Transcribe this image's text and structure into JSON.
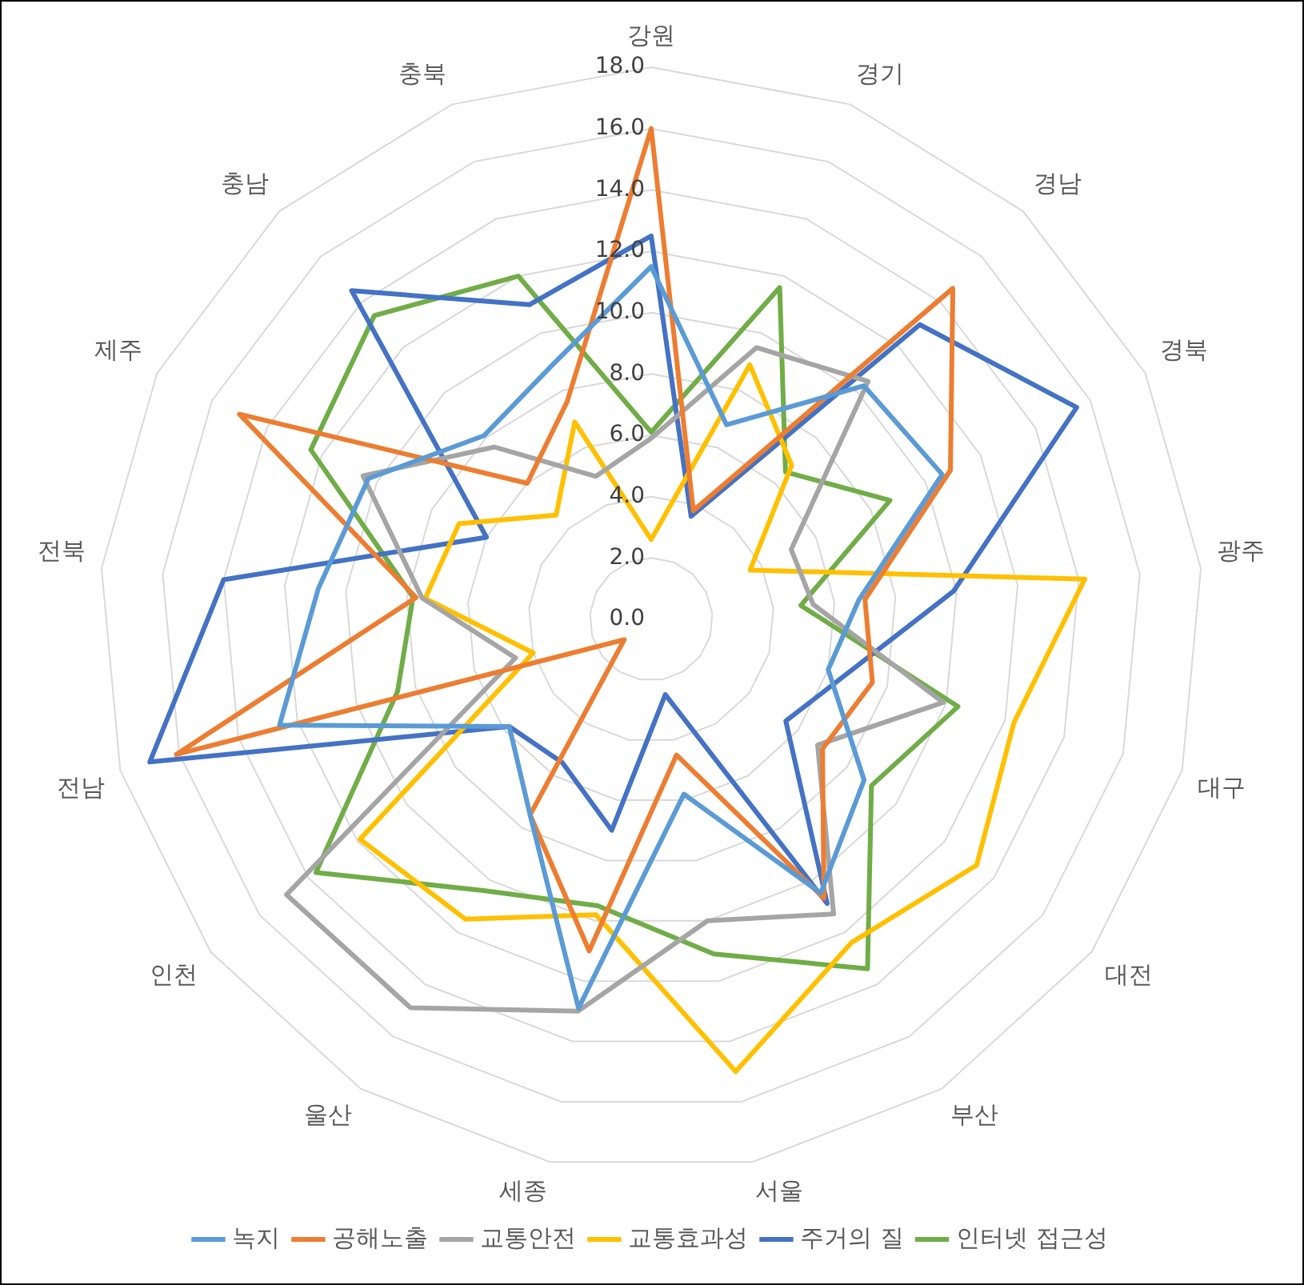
{
  "chart_data": {
    "type": "radar",
    "categories": [
      "강원",
      "경기",
      "경남",
      "경북",
      "광주",
      "대구",
      "대전",
      "부산",
      "서울",
      "세종",
      "울산",
      "인천",
      "전남",
      "전북",
      "제주",
      "충남",
      "충북"
    ],
    "series": [
      {
        "name": "녹지",
        "color": "#5b9bd5",
        "values": [
          11.5,
          6.8,
          10.3,
          10.6,
          6.8,
          6.0,
          8.7,
          10.5,
          5.8,
          12.9,
          7.5,
          5.8,
          12.6,
          10.9,
          10.3,
          8.1,
          8.9
        ]
      },
      {
        "name": "공해노출",
        "color": "#ed7d31",
        "values": [
          16.0,
          3.8,
          14.6,
          10.9,
          7.0,
          7.5,
          7.0,
          10.7,
          4.5,
          11.0,
          7.5,
          1.1,
          16.1,
          7.7,
          15.0,
          6.0,
          7.6
        ]
      },
      {
        "name": "교통안전",
        "color": "#a5a5a5",
        "values": [
          5.9,
          9.5,
          10.5,
          5.1,
          5.3,
          9.9,
          6.8,
          11.3,
          10.0,
          13.0,
          14.9,
          14.9,
          4.6,
          7.5,
          10.5,
          7.6,
          5.0
        ]
      },
      {
        "name": "교통효과성",
        "color": "#ffc000",
        "values": [
          2.6,
          8.9,
          6.8,
          3.6,
          14.2,
          12.3,
          13.3,
          12.4,
          15.0,
          9.8,
          11.5,
          11.9,
          4.0,
          7.4,
          7.0,
          4.6,
          6.9
        ]
      },
      {
        "name": "주거의 질",
        "color": "#4472c4",
        "values": [
          12.5,
          3.6,
          13.0,
          15.5,
          9.9,
          6.6,
          5.5,
          10.9,
          2.5,
          7.0,
          5.5,
          5.8,
          17.0,
          14.0,
          6.0,
          14.5,
          11.0
        ]
      },
      {
        "name": "인터넷 접근성",
        "color": "#70ad47",
        "values": [
          6.1,
          11.6,
          6.5,
          8.7,
          4.9,
          10.4,
          9.0,
          13.4,
          11.1,
          9.5,
          10.4,
          13.7,
          8.6,
          7.8,
          12.4,
          13.4,
          12.0
        ]
      }
    ],
    "ylim": [
      0,
      18
    ],
    "yticks": [
      {
        "value": 0,
        "label": "0.0"
      },
      {
        "value": 2,
        "label": "2.0"
      },
      {
        "value": 4,
        "label": "4.0"
      },
      {
        "value": 6,
        "label": "6.0"
      },
      {
        "value": 8,
        "label": "8.0"
      },
      {
        "value": 10,
        "label": "10.0"
      },
      {
        "value": 12,
        "label": "12.0"
      },
      {
        "value": 14,
        "label": "14.0"
      },
      {
        "value": 16,
        "label": "16.0"
      },
      {
        "value": 18,
        "label": "18.0"
      }
    ],
    "grid": true,
    "legend": "bottom",
    "marker": "none",
    "line_style": "solid"
  }
}
